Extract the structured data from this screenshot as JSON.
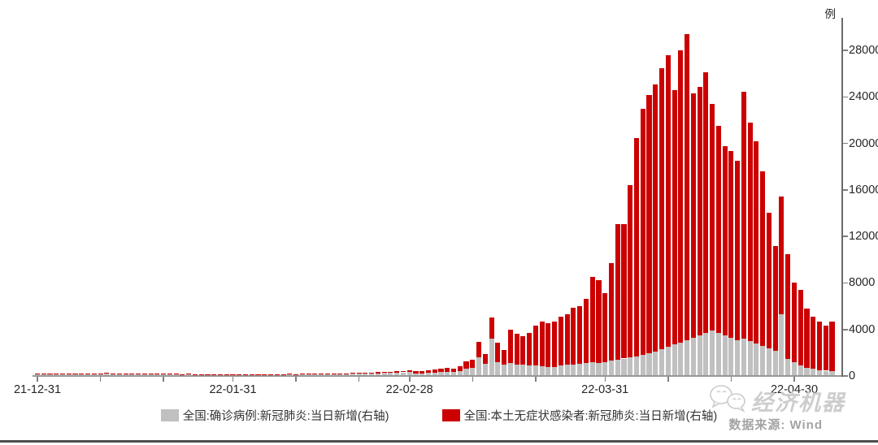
{
  "unit_label": "例",
  "legend": {
    "items": [
      {
        "label": "全国:确诊病例:新冠肺炎:当日新增(右轴)",
        "color": "#c0c0c0"
      },
      {
        "label": "全国:本土无症状感染者:新冠肺炎:当日新增(右轴)",
        "color": "#cc0000"
      }
    ]
  },
  "footer": {
    "logo_text": "经济机器",
    "source_note": "数据来源: Wind"
  },
  "chart_data": {
    "type": "bar",
    "stacked": true,
    "grid": false,
    "legend_position": "bottom",
    "y_axis": {
      "side": "right",
      "unit": "例",
      "min": 0,
      "max": 29500,
      "ticks": [
        0,
        4000,
        8000,
        12000,
        16000,
        20000,
        24000,
        28000
      ]
    },
    "x_axis": {
      "labeled_ticks": [
        "21-12-31",
        "22-01-31",
        "22-02-28",
        "22-03-31",
        "22-04-30"
      ],
      "minor_ticks": [
        "22-01-10",
        "22-01-20",
        "22-02-10",
        "22-02-20",
        "22-03-10",
        "22-03-20",
        "22-04-10",
        "22-04-20"
      ]
    },
    "x": [
      "21-12-31",
      "22-01-01",
      "22-01-02",
      "22-01-03",
      "22-01-04",
      "22-01-05",
      "22-01-06",
      "22-01-07",
      "22-01-08",
      "22-01-09",
      "22-01-10",
      "22-01-11",
      "22-01-12",
      "22-01-13",
      "22-01-14",
      "22-01-15",
      "22-01-16",
      "22-01-17",
      "22-01-18",
      "22-01-19",
      "22-01-20",
      "22-01-21",
      "22-01-22",
      "22-01-23",
      "22-01-24",
      "22-01-25",
      "22-01-26",
      "22-01-27",
      "22-01-28",
      "22-01-29",
      "22-01-30",
      "22-01-31",
      "22-02-01",
      "22-02-02",
      "22-02-03",
      "22-02-04",
      "22-02-05",
      "22-02-06",
      "22-02-07",
      "22-02-08",
      "22-02-09",
      "22-02-10",
      "22-02-11",
      "22-02-12",
      "22-02-13",
      "22-02-14",
      "22-02-15",
      "22-02-16",
      "22-02-17",
      "22-02-18",
      "22-02-19",
      "22-02-20",
      "22-02-21",
      "22-02-22",
      "22-02-23",
      "22-02-24",
      "22-02-25",
      "22-02-26",
      "22-02-27",
      "22-02-28",
      "22-03-01",
      "22-03-02",
      "22-03-03",
      "22-03-04",
      "22-03-05",
      "22-03-06",
      "22-03-07",
      "22-03-08",
      "22-03-09",
      "22-03-10",
      "22-03-11",
      "22-03-12",
      "22-03-13",
      "22-03-14",
      "22-03-15",
      "22-03-16",
      "22-03-17",
      "22-03-18",
      "22-03-19",
      "22-03-20",
      "22-03-21",
      "22-03-22",
      "22-03-23",
      "22-03-24",
      "22-03-25",
      "22-03-26",
      "22-03-27",
      "22-03-28",
      "22-03-29",
      "22-03-30",
      "22-03-31",
      "22-04-01",
      "22-04-02",
      "22-04-03",
      "22-04-04",
      "22-04-05",
      "22-04-06",
      "22-04-07",
      "22-04-08",
      "22-04-09",
      "22-04-10",
      "22-04-11",
      "22-04-12",
      "22-04-13",
      "22-04-14",
      "22-04-15",
      "22-04-16",
      "22-04-17",
      "22-04-18",
      "22-04-19",
      "22-04-20",
      "22-04-21",
      "22-04-22",
      "22-04-23",
      "22-04-24",
      "22-04-25",
      "22-04-26",
      "22-04-27",
      "22-04-28",
      "22-04-29",
      "22-04-30",
      "22-05-01",
      "22-05-02",
      "22-05-03",
      "22-05-04",
      "22-05-05",
      "22-05-06"
    ],
    "series": [
      {
        "name": "全国:确诊病例:新冠肺炎:当日新增(右轴)",
        "color": "#c0c0c0",
        "values": [
          175,
          185,
          170,
          175,
          190,
          185,
          165,
          155,
          175,
          200,
          195,
          210,
          180,
          200,
          165,
          190,
          180,
          200,
          170,
          150,
          160,
          150,
          145,
          130,
          155,
          130,
          120,
          115,
          105,
          100,
          90,
          90,
          95,
          100,
          105,
          100,
          115,
          120,
          115,
          130,
          140,
          135,
          145,
          140,
          155,
          160,
          155,
          170,
          175,
          170,
          185,
          195,
          210,
          225,
          240,
          255,
          275,
          295,
          315,
          335,
          220,
          230,
          260,
          300,
          350,
          370,
          340,
          450,
          650,
          720,
          1600,
          1050,
          3250,
          1200,
          1000,
          1150,
          1000,
          950,
          920,
          880,
          820,
          780,
          800,
          900,
          960,
          1000,
          1050,
          1150,
          1200,
          1150,
          1200,
          1350,
          1400,
          1500,
          1600,
          1700,
          1800,
          1950,
          2100,
          2300,
          2500,
          2700,
          2900,
          3100,
          3300,
          3500,
          3700,
          3900,
          3700,
          3500,
          3300,
          3100,
          3200,
          3000,
          2800,
          2600,
          2400,
          2200,
          5300,
          1500,
          1200,
          900,
          700,
          600,
          500,
          450,
          400
        ]
      },
      {
        "name": "全国:本土无症状感染者:新冠肺炎:当日新增(右轴)",
        "color": "#cc0000",
        "values": [
          35,
          40,
          35,
          40,
          45,
          40,
          35,
          30,
          40,
          45,
          45,
          50,
          40,
          45,
          35,
          40,
          40,
          45,
          35,
          35,
          35,
          30,
          35,
          30,
          35,
          30,
          25,
          30,
          25,
          25,
          20,
          25,
          25,
          25,
          30,
          25,
          30,
          35,
          30,
          35,
          40,
          35,
          40,
          40,
          45,
          50,
          45,
          55,
          55,
          55,
          65,
          70,
          80,
          85,
          95,
          100,
          110,
          120,
          130,
          140,
          180,
          190,
          220,
          250,
          300,
          310,
          290,
          390,
          610,
          680,
          1330,
          830,
          1780,
          1660,
          1230,
          2830,
          2630,
          2470,
          2780,
          3420,
          3830,
          3740,
          3860,
          4200,
          4320,
          4900,
          4950,
          5480,
          7320,
          7090,
          5900,
          8350,
          11650,
          11550,
          14800,
          18750,
          21200,
          22200,
          23000,
          24200,
          25050,
          21870,
          25100,
          26300,
          21000,
          21370,
          22400,
          19480,
          17800,
          16260,
          16040,
          15400,
          21230,
          18790,
          17380,
          15000,
          11640,
          8970,
          10140,
          8970,
          6820,
          6500,
          5090,
          4500,
          4180,
          3850,
          4250
        ]
      }
    ]
  }
}
